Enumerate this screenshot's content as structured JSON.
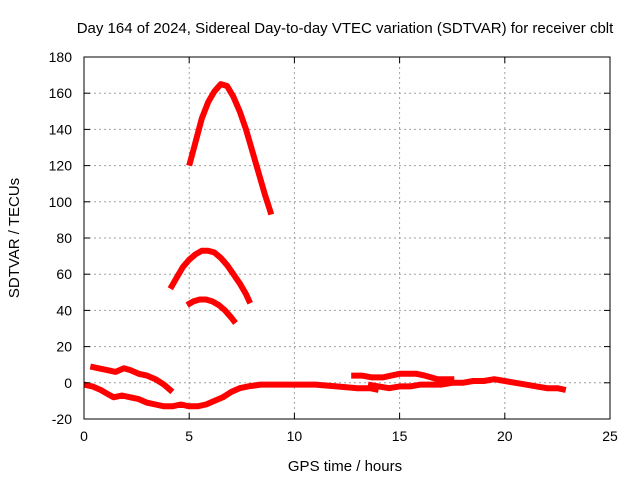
{
  "chart_data": {
    "type": "line",
    "title": "Day 164 of 2024, Sidereal Day-to-day VTEC variation (SDTVAR) for receiver cblt",
    "xlabel": "GPS time / hours",
    "ylabel": "SDTVAR / TECUs",
    "xlim": [
      0,
      25
    ],
    "ylim": [
      -20,
      180
    ],
    "xticks": [
      0,
      5,
      10,
      15,
      20,
      25
    ],
    "yticks": [
      -20,
      0,
      20,
      40,
      60,
      80,
      100,
      120,
      140,
      160,
      180
    ],
    "grid": true,
    "series_color": "#ff0000",
    "series": [
      {
        "name": "arc-peak-165",
        "points": [
          [
            5.0,
            120
          ],
          [
            5.3,
            133
          ],
          [
            5.6,
            146
          ],
          [
            5.9,
            155
          ],
          [
            6.2,
            161
          ],
          [
            6.5,
            165
          ],
          [
            6.8,
            164
          ],
          [
            7.1,
            158
          ],
          [
            7.4,
            150
          ],
          [
            7.7,
            140
          ],
          [
            8.0,
            128
          ],
          [
            8.3,
            116
          ],
          [
            8.6,
            104
          ],
          [
            8.9,
            93
          ]
        ]
      },
      {
        "name": "arc-peak-73",
        "points": [
          [
            4.1,
            52
          ],
          [
            4.4,
            58
          ],
          [
            4.7,
            64
          ],
          [
            5.0,
            68
          ],
          [
            5.3,
            71
          ],
          [
            5.6,
            73
          ],
          [
            5.9,
            73
          ],
          [
            6.2,
            72
          ],
          [
            6.5,
            69
          ],
          [
            6.8,
            65
          ],
          [
            7.1,
            60
          ],
          [
            7.4,
            55
          ],
          [
            7.7,
            49
          ],
          [
            7.9,
            44
          ]
        ]
      },
      {
        "name": "arc-peak-45",
        "points": [
          [
            4.9,
            43
          ],
          [
            5.2,
            45
          ],
          [
            5.5,
            46
          ],
          [
            5.8,
            46
          ],
          [
            6.1,
            45
          ],
          [
            6.4,
            43
          ],
          [
            6.7,
            40
          ],
          [
            7.0,
            36
          ],
          [
            7.2,
            33
          ]
        ]
      },
      {
        "name": "arc-positive-early",
        "points": [
          [
            0.3,
            9
          ],
          [
            0.7,
            8
          ],
          [
            1.1,
            7
          ],
          [
            1.5,
            6
          ],
          [
            1.9,
            8
          ],
          [
            2.2,
            7
          ],
          [
            2.6,
            5
          ],
          [
            3.0,
            4
          ],
          [
            3.4,
            2
          ],
          [
            3.8,
            -1
          ],
          [
            4.2,
            -5
          ]
        ]
      },
      {
        "name": "arc-negative-early",
        "points": [
          [
            0.0,
            -1
          ],
          [
            0.4,
            -2
          ],
          [
            0.8,
            -4
          ],
          [
            1.1,
            -6
          ],
          [
            1.4,
            -8
          ],
          [
            1.8,
            -7
          ],
          [
            2.2,
            -8
          ],
          [
            2.6,
            -9
          ],
          [
            3.0,
            -11
          ],
          [
            3.4,
            -12
          ],
          [
            3.8,
            -13
          ],
          [
            4.2,
            -13
          ],
          [
            4.6,
            -12
          ],
          [
            5.0,
            -13
          ],
          [
            5.4,
            -13
          ],
          [
            5.8,
            -12
          ],
          [
            6.2,
            -10
          ],
          [
            6.6,
            -8
          ],
          [
            7.0,
            -5
          ],
          [
            7.4,
            -3
          ],
          [
            7.8,
            -2
          ],
          [
            8.4,
            -1
          ],
          [
            9.0,
            -1
          ],
          [
            10.0,
            -1
          ],
          [
            11.0,
            -1
          ],
          [
            12.0,
            -2
          ],
          [
            13.0,
            -3
          ],
          [
            13.6,
            -3
          ],
          [
            14.0,
            -4
          ]
        ]
      },
      {
        "name": "arc-late-a",
        "points": [
          [
            12.7,
            4
          ],
          [
            13.2,
            4
          ],
          [
            13.7,
            3
          ],
          [
            14.2,
            3
          ],
          [
            14.6,
            4
          ],
          [
            15.0,
            5
          ],
          [
            15.4,
            5
          ],
          [
            15.8,
            5
          ],
          [
            16.2,
            4
          ],
          [
            16.5,
            3
          ],
          [
            16.8,
            2
          ],
          [
            17.2,
            2
          ],
          [
            17.6,
            2
          ]
        ]
      },
      {
        "name": "arc-late-b",
        "points": [
          [
            13.5,
            -1
          ],
          [
            14.0,
            -2
          ],
          [
            14.5,
            -3
          ],
          [
            15.0,
            -2
          ],
          [
            15.5,
            -2
          ],
          [
            16.0,
            -1
          ],
          [
            16.5,
            -1
          ],
          [
            17.0,
            -1
          ],
          [
            17.5,
            0
          ],
          [
            18.0,
            0
          ],
          [
            18.5,
            1
          ],
          [
            19.0,
            1
          ],
          [
            19.5,
            2
          ],
          [
            20.0,
            1
          ],
          [
            20.5,
            0
          ],
          [
            21.0,
            -1
          ],
          [
            21.5,
            -2
          ],
          [
            22.0,
            -3
          ],
          [
            22.5,
            -3
          ],
          [
            22.9,
            -4
          ]
        ]
      }
    ]
  }
}
